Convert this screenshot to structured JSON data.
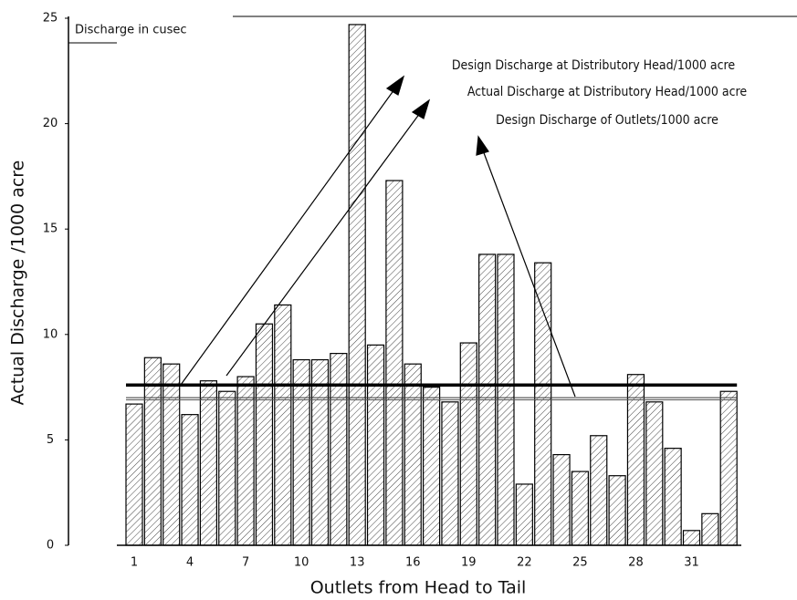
{
  "chart_data": {
    "type": "bar",
    "box_title": "Discharge in cusec",
    "ylabel": "Actual Discharge /1000 acre",
    "xlabel": "Outlets from Head to Tail",
    "categories": [
      "1",
      null,
      null,
      "4",
      null,
      null,
      "7",
      null,
      null,
      "10",
      null,
      null,
      "13",
      null,
      null,
      "16",
      null,
      null,
      "19",
      null,
      null,
      "22",
      null,
      null,
      "25",
      null,
      null,
      "28",
      null,
      null,
      "31",
      null,
      null
    ],
    "values": [
      6.7,
      8.9,
      8.6,
      6.2,
      7.8,
      7.3,
      8.0,
      10.5,
      11.4,
      8.8,
      8.8,
      9.1,
      24.7,
      9.5,
      17.3,
      8.6,
      7.5,
      6.8,
      9.6,
      13.8,
      13.8,
      2.9,
      13.4,
      4.3,
      3.5,
      5.2,
      3.3,
      8.1,
      6.8,
      4.6,
      0.7,
      1.5,
      7.3
    ],
    "color": "#000000",
    "ylim": [
      0,
      25
    ],
    "yticks": [
      0,
      5,
      10,
      15,
      20,
      25
    ],
    "lines": [
      {
        "name": "Design Discharge at Distributory Head/1000 acre",
        "value": 7.6,
        "color": "#000000",
        "width": 3.5
      },
      {
        "name": "Actual Discharge at Distributory Head/1000 acre",
        "value": 7.0,
        "color": "#333333",
        "width": 1
      },
      {
        "name": "Design Discharge of Outlets/1000 acre",
        "value": 6.9,
        "color": "#555555",
        "width": 1
      }
    ]
  }
}
